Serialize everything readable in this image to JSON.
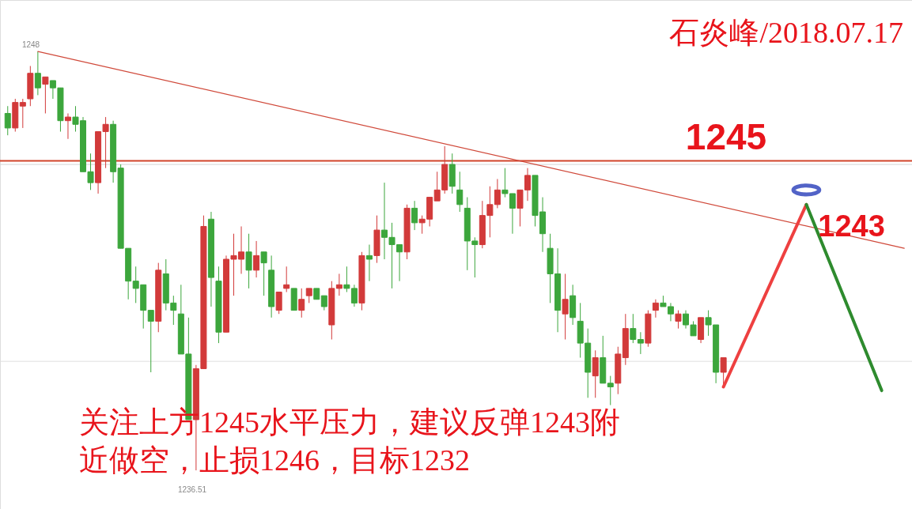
{
  "chart_data": {
    "type": "candlestick",
    "title": "石炎峰/2018.07.17",
    "categories": [
      null,
      null,
      null,
      null,
      null,
      null,
      null,
      null,
      null,
      null,
      null,
      null,
      null,
      null,
      null,
      null,
      null,
      null,
      null,
      null,
      null,
      null,
      null,
      null,
      null,
      null,
      null,
      null,
      null,
      null,
      null,
      null,
      null,
      null,
      null,
      null,
      null,
      null,
      null,
      null,
      null,
      null,
      null,
      null,
      null,
      null,
      null,
      null,
      null,
      null,
      null,
      null,
      null,
      null,
      null,
      null,
      null,
      null,
      null,
      null,
      null,
      null,
      null,
      null,
      null,
      null,
      null,
      null,
      null,
      null,
      null,
      null,
      null,
      null,
      null,
      null,
      null,
      null,
      null,
      null,
      null,
      null,
      null,
      null,
      null,
      null,
      null,
      null,
      null,
      null,
      null,
      null,
      null,
      null,
      null,
      null,
      null,
      null,
      null,
      null,
      null,
      null,
      null,
      null,
      null,
      null,
      null,
      null,
      null,
      null,
      null,
      null,
      null,
      null,
      null,
      null,
      null,
      null,
      null,
      null
    ],
    "ohlc": [
      [
        1246.3,
        1246.5,
        1245.7,
        1245.9
      ],
      [
        1245.9,
        1246.7,
        1245.8,
        1246.6
      ],
      [
        1246.5,
        1246.7,
        1245.9,
        1246.6
      ],
      [
        1246.7,
        1247.6,
        1246.5,
        1247.4
      ],
      [
        1247.4,
        1248,
        1246.8,
        1247.0
      ],
      [
        1247.1,
        1247.3,
        1246.3,
        1247.3
      ],
      [
        1247.2,
        1247.2,
        1246.7,
        1247.0
      ],
      [
        1247.0,
        1247.0,
        1245.8,
        1246.1
      ],
      [
        1246.1,
        1246.3,
        1245.6,
        1246.2
      ],
      [
        1246.2,
        1246.5,
        1245.8,
        1246.0
      ],
      [
        1246.1,
        1246.2,
        1244.7,
        1244.7
      ],
      [
        1244.7,
        1245.2,
        1244.2,
        1244.4
      ],
      [
        1244.4,
        1245.8,
        1244.1,
        1245.8
      ],
      [
        1245.8,
        1246.2,
        1244.8,
        1246.0
      ],
      [
        1246.0,
        1246.1,
        1244.4,
        1244.7
      ],
      [
        1244.8,
        1244.9,
        1242.6,
        1242.6
      ],
      [
        1242.6,
        1242.6,
        1241.2,
        1241.7
      ],
      [
        1241.7,
        1242.1,
        1241.1,
        1241.5
      ],
      [
        1241.6,
        1241.6,
        1240.4,
        1240.9
      ],
      [
        1240.9,
        1240.9,
        1239.2,
        1240.6
      ],
      [
        1240.6,
        1242.2,
        1240.3,
        1242.0
      ],
      [
        1241.9,
        1242.3,
        1240.9,
        1241.1
      ],
      [
        1241.1,
        1241.3,
        1240.5,
        1240.9
      ],
      [
        1240.8,
        1241.6,
        1239.7,
        1239.7
      ],
      [
        1239.7,
        1240.7,
        1237.9,
        1237.9
      ],
      [
        1237.9,
        1239.4,
        1236.51,
        1239.3
      ],
      [
        1239.3,
        1243.5,
        1239.3,
        1243.2
      ],
      [
        1243.4,
        1243.6,
        1241.0,
        1241.8
      ],
      [
        1241.7,
        1242.1,
        1240.0,
        1240.3
      ],
      [
        1240.3,
        1242.4,
        1240.3,
        1242.3
      ],
      [
        1242.3,
        1243.0,
        1241.3,
        1242.4
      ],
      [
        1242.3,
        1243.2,
        1241.9,
        1242.5
      ],
      [
        1242.5,
        1243.0,
        1241.5,
        1242.0
      ],
      [
        1242.0,
        1242.8,
        1241.8,
        1242.4
      ],
      [
        1242.5,
        1242.5,
        1241.3,
        1242.2
      ],
      [
        1242.0,
        1242.4,
        1240.7,
        1241.0
      ],
      [
        1240.9,
        1241.4,
        1240.8,
        1241.4
      ],
      [
        1241.5,
        1242.1,
        1241.4,
        1241.6
      ],
      [
        1241.5,
        1241.5,
        1240.9,
        1240.9
      ],
      [
        1240.9,
        1241.5,
        1240.7,
        1241.2
      ],
      [
        1241.3,
        1241.5,
        1241.1,
        1241.5
      ],
      [
        1241.5,
        1241.5,
        1241.2,
        1241.2
      ],
      [
        1241.3,
        1241.3,
        1240.9,
        1241.0
      ],
      [
        1240.5,
        1241.7,
        1240.1,
        1241.5
      ],
      [
        1241.5,
        1241.9,
        1241.3,
        1241.6
      ],
      [
        1241.6,
        1242.1,
        1241.4,
        1241.5
      ],
      [
        1241.5,
        1241.6,
        1241.0,
        1241.1
      ],
      [
        1241.1,
        1242.5,
        1240.9,
        1242.4
      ],
      [
        1242.4,
        1242.7,
        1241.7,
        1242.3
      ],
      [
        1242.4,
        1243.5,
        1242.2,
        1243.1
      ],
      [
        1243.1,
        1244.4,
        1242.3,
        1242.9
      ],
      [
        1242.9,
        1243.3,
        1241.5,
        1242.7
      ],
      [
        1242.7,
        1242.7,
        1241.7,
        1242.5
      ],
      [
        1242.5,
        1243.8,
        1242.3,
        1243.7
      ],
      [
        1243.7,
        1243.9,
        1243.1,
        1243.3
      ],
      [
        1243.3,
        1243.5,
        1243.0,
        1243.4
      ],
      [
        1243.4,
        1244.0,
        1243.2,
        1244.0
      ],
      [
        1243.9,
        1244.7,
        1243.9,
        1244.2
      ],
      [
        1244.2,
        1245.4,
        1244.1,
        1244.9
      ],
      [
        1244.9,
        1245.2,
        1244.1,
        1244.3
      ],
      [
        1244.2,
        1244.7,
        1243.6,
        1243.8
      ],
      [
        1243.7,
        1244.0,
        1242.0,
        1242.8
      ],
      [
        1242.8,
        1242.9,
        1241.8,
        1242.7
      ],
      [
        1242.7,
        1243.9,
        1242.6,
        1243.5
      ],
      [
        1243.5,
        1244.3,
        1242.9,
        1243.8
      ],
      [
        1243.8,
        1244.5,
        1243.7,
        1244.2
      ],
      [
        1244.2,
        1244.8,
        1244.0,
        1244.1
      ],
      [
        1244.1,
        1244.1,
        1243.0,
        1243.7
      ],
      [
        1243.7,
        1244.2,
        1243.2,
        1244.2
      ],
      [
        1244.2,
        1244.8,
        1243.9,
        1244.6
      ],
      [
        1244.6,
        1244.6,
        1243.2,
        1243.5
      ],
      [
        1243.6,
        1244.0,
        1242.5,
        1243.0
      ],
      [
        1242.6,
        1243.0,
        1241.1,
        1241.9
      ],
      [
        1241.9,
        1242.6,
        1240.3,
        1240.9
      ],
      [
        1240.8,
        1241.9,
        1240.1,
        1241.2
      ],
      [
        1241.3,
        1241.6,
        1240.5,
        1240.7
      ],
      [
        1240.6,
        1241.1,
        1239.6,
        1240.0
      ],
      [
        1240.0,
        1240.4,
        1238.5,
        1239.2
      ],
      [
        1239.1,
        1239.8,
        1238.5,
        1239.6
      ],
      [
        1239.6,
        1240.2,
        1238.9,
        1238.9
      ],
      [
        1238.9,
        1239.1,
        1238.3,
        1238.8
      ],
      [
        1238.9,
        1239.9,
        1238.6,
        1239.7
      ],
      [
        1239.6,
        1240.8,
        1239.4,
        1240.4
      ],
      [
        1240.4,
        1240.8,
        1240.0,
        1240.1
      ],
      [
        1240.1,
        1240.3,
        1239.7,
        1240.0
      ],
      [
        1240.0,
        1240.9,
        1239.9,
        1240.8
      ],
      [
        1240.9,
        1241.2,
        1240.7,
        1241.1
      ],
      [
        1241.1,
        1241.3,
        1241.0,
        1241.0
      ],
      [
        1241.0,
        1241.1,
        1240.6,
        1240.8
      ],
      [
        1240.6,
        1240.9,
        1240.4,
        1240.8
      ],
      [
        1240.8,
        1240.9,
        1240.4,
        1240.5
      ],
      [
        1240.5,
        1240.6,
        1240.2,
        1240.2
      ],
      [
        1240.1,
        1240.7,
        1240.0,
        1240.7
      ],
      [
        1240.7,
        1240.9,
        1240.2,
        1240.5
      ],
      [
        1240.5,
        1240.5,
        1238.9,
        1239.2
      ],
      [
        1239.2,
        1239.6,
        1238.8,
        1239.6
      ],
      null,
      null,
      null,
      null,
      null,
      null,
      null,
      null,
      null,
      null,
      null,
      null,
      null,
      null,
      null,
      null,
      null,
      null,
      null,
      null,
      null,
      null,
      null,
      null
    ],
    "colors": [
      "#3ca63c",
      "#d23a3a",
      "#d23a3a",
      "#d23a3a",
      "#3ca63c",
      "#d23a3a",
      "#3ca63c",
      "#3ca63c",
      "#d23a3a",
      "#3ca63c",
      "#3ca63c",
      "#3ca63c",
      "#d23a3a",
      "#d23a3a",
      "#3ca63c",
      "#3ca63c",
      "#3ca63c",
      "#3ca63c",
      "#3ca63c",
      "#3ca63c",
      "#d23a3a",
      "#3ca63c",
      "#3ca63c",
      "#3ca63c",
      "#3ca63c",
      "#d23a3a",
      "#d23a3a",
      "#3ca63c",
      "#3ca63c",
      "#d23a3a",
      "#d23a3a",
      "#d23a3a",
      "#3ca63c",
      "#d23a3a",
      "#3ca63c",
      "#3ca63c",
      "#d23a3a",
      "#d23a3a",
      "#3ca63c",
      "#d23a3a",
      "#d23a3a",
      "#3ca63c",
      "#3ca63c",
      "#d23a3a",
      "#d23a3a",
      "#3ca63c",
      "#3ca63c",
      "#d23a3a",
      "#3ca63c",
      "#d23a3a",
      "#3ca63c",
      "#3ca63c",
      "#3ca63c",
      "#d23a3a",
      "#3ca63c",
      "#d23a3a",
      "#d23a3a",
      "#d23a3a",
      "#d23a3a",
      "#3ca63c",
      "#3ca63c",
      "#3ca63c",
      "#3ca63c",
      "#d23a3a",
      "#d23a3a",
      "#d23a3a",
      "#3ca63c",
      "#3ca63c",
      "#d23a3a",
      "#d23a3a",
      "#3ca63c",
      "#3ca63c",
      "#3ca63c",
      "#3ca63c",
      "#d23a3a",
      "#3ca63c",
      "#3ca63c",
      "#3ca63c",
      "#d23a3a",
      "#3ca63c",
      "#3ca63c",
      "#d23a3a",
      "#d23a3a",
      "#3ca63c",
      "#3ca63c",
      "#d23a3a",
      "#d23a3a",
      "#3ca63c",
      "#3ca63c",
      "#d23a3a",
      "#3ca63c",
      "#3ca63c",
      "#d23a3a",
      "#3ca63c",
      "#3ca63c",
      "#d23a3a",
      null,
      null,
      null,
      null,
      null,
      null,
      null,
      null,
      null,
      null,
      null,
      null,
      null,
      null,
      null,
      null,
      null,
      null,
      null,
      null,
      null,
      null,
      null,
      null
    ],
    "ylim": [
      1235.45,
      1249.41
    ],
    "series": [
      {
        "type": "line",
        "color": "#d0493a",
        "values": [
          null,
          null,
          null,
          null,
          1248.0,
          null,
          null,
          null,
          null,
          null,
          null,
          null,
          null,
          null,
          null,
          null,
          null,
          null,
          null,
          null,
          null,
          null,
          null,
          null,
          null,
          null,
          null,
          null,
          null,
          null,
          null,
          null,
          null,
          null,
          null,
          null,
          null,
          null,
          null,
          null,
          null,
          null,
          null,
          null,
          null,
          null,
          null,
          null,
          null,
          null,
          null,
          null,
          null,
          null,
          null,
          null,
          null,
          null,
          null,
          null,
          null,
          null,
          null,
          null,
          null,
          null,
          null,
          null,
          null,
          null,
          null,
          null,
          null,
          null,
          null,
          null,
          null,
          null,
          null,
          null,
          null,
          null,
          null,
          null,
          null,
          null,
          null,
          null,
          null,
          null,
          null,
          null,
          null,
          null,
          null,
          null,
          null,
          null,
          null,
          null,
          null,
          null,
          null,
          null,
          null,
          null,
          null,
          null,
          null,
          null,
          null,
          null,
          null,
          null,
          null,
          null,
          null,
          null,
          null,
          1242.6
        ]
      },
      {
        "type": "line",
        "color": "#ee4040",
        "values": [
          null,
          null,
          null,
          null,
          null,
          null,
          null,
          null,
          null,
          null,
          null,
          null,
          null,
          null,
          null,
          null,
          null,
          null,
          null,
          null,
          null,
          null,
          null,
          null,
          null,
          null,
          null,
          null,
          null,
          null,
          null,
          null,
          null,
          null,
          null,
          null,
          null,
          null,
          null,
          null,
          null,
          null,
          null,
          null,
          null,
          null,
          null,
          null,
          null,
          null,
          null,
          null,
          null,
          null,
          null,
          null,
          null,
          null,
          null,
          null,
          null,
          null,
          null,
          null,
          null,
          null,
          null,
          null,
          null,
          null,
          null,
          null,
          null,
          null,
          null,
          null,
          null,
          null,
          null,
          null,
          null,
          null,
          null,
          null,
          null,
          null,
          null,
          null,
          null,
          null,
          null,
          null,
          null,
          null,
          null,
          1238.8,
          null,
          null,
          null,
          null,
          null,
          null,
          null,
          null,
          null,
          null,
          1243.8,
          null,
          null,
          null,
          null,
          null,
          null,
          null,
          null,
          null,
          null,
          null,
          null,
          null
        ]
      },
      {
        "type": "line",
        "color": "#2e8b2e",
        "values": [
          null,
          null,
          null,
          null,
          null,
          null,
          null,
          null,
          null,
          null,
          null,
          null,
          null,
          null,
          null,
          null,
          null,
          null,
          null,
          null,
          null,
          null,
          null,
          null,
          null,
          null,
          null,
          null,
          null,
          null,
          null,
          null,
          null,
          null,
          null,
          null,
          null,
          null,
          null,
          null,
          null,
          null,
          null,
          null,
          null,
          null,
          null,
          null,
          null,
          null,
          null,
          null,
          null,
          null,
          null,
          null,
          null,
          null,
          null,
          null,
          null,
          null,
          null,
          null,
          null,
          null,
          null,
          null,
          null,
          null,
          null,
          null,
          null,
          null,
          null,
          null,
          null,
          null,
          null,
          null,
          null,
          null,
          null,
          null,
          null,
          null,
          null,
          null,
          null,
          null,
          null,
          null,
          null,
          null,
          null,
          null,
          null,
          null,
          null,
          null,
          null,
          null,
          null,
          null,
          null,
          null,
          1243.8,
          null,
          null,
          null,
          null,
          null,
          null,
          null,
          null,
          null,
          1238.7,
          null,
          null,
          null
        ]
      },
      {
        "type": "scatter",
        "color": "#0a22b0",
        "marker": "circle",
        "values": [
          null,
          null,
          null,
          null,
          null,
          null,
          null,
          null,
          null,
          null,
          null,
          null,
          null,
          null,
          null,
          null,
          null,
          null,
          null,
          null,
          null,
          null,
          null,
          null,
          null,
          null,
          null,
          null,
          null,
          null,
          null,
          null,
          null,
          null,
          null,
          null,
          null,
          null,
          null,
          null,
          null,
          null,
          null,
          null,
          null,
          null,
          null,
          null,
          null,
          null,
          null,
          null,
          null,
          null,
          null,
          null,
          null,
          null,
          null,
          null,
          null,
          null,
          null,
          null,
          null,
          null,
          null,
          null,
          null,
          null,
          null,
          null,
          null,
          null,
          null,
          null,
          null,
          null,
          null,
          null,
          null,
          null,
          null,
          null,
          null,
          null,
          null,
          null,
          null,
          null,
          null,
          null,
          null,
          null,
          null,
          null,
          null,
          null,
          null,
          null,
          null,
          null,
          null,
          null,
          null,
          null,
          1244.2,
          null,
          null,
          null,
          null,
          null,
          null,
          null,
          null,
          null,
          null,
          null,
          null,
          null
        ]
      }
    ],
    "ref_lines": [
      {
        "axis": "y",
        "value": 1245,
        "label": "1245",
        "color": "#d2442a"
      },
      {
        "axis": "y",
        "value": 1244.9,
        "color": "#d4d4d4"
      },
      {
        "axis": "y",
        "value": 1239.5,
        "color": "#e0e0e0"
      }
    ],
    "annotations": [
      "1248",
      "1236.51",
      {
        "text": "1243",
        "y": 1243
      },
      "关注上方1245水平压力，建议反弹1243附",
      "近做空，止损1246，目标1232"
    ]
  }
}
